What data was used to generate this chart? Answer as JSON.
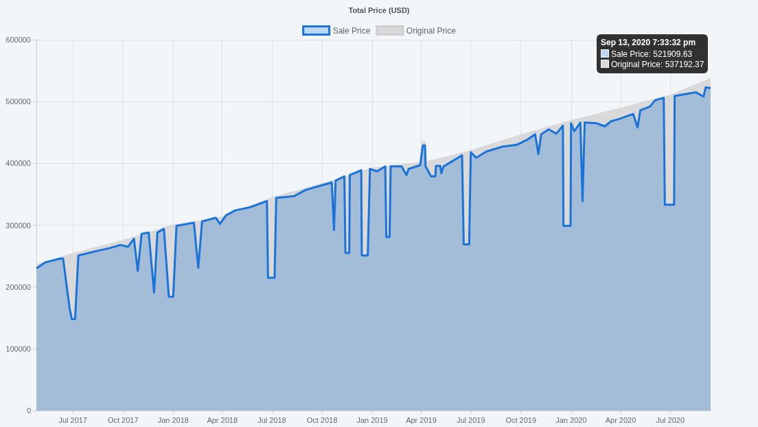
{
  "chart_data": {
    "type": "area",
    "title": "Total Price (USD)",
    "xlim": [
      "2017-04-25",
      "2020-09-13"
    ],
    "xticks": [
      {
        "value": "2017-07-01",
        "label": "Jul 2017"
      },
      {
        "value": "2017-10-01",
        "label": "Oct 2017"
      },
      {
        "value": "2018-01-01",
        "label": "Jan 2018"
      },
      {
        "value": "2018-04-01",
        "label": "Apr 2018"
      },
      {
        "value": "2018-07-01",
        "label": "Jul 2018"
      },
      {
        "value": "2018-10-01",
        "label": "Oct 2018"
      },
      {
        "value": "2019-01-01",
        "label": "Jan 2019"
      },
      {
        "value": "2019-04-01",
        "label": "Apr 2019"
      },
      {
        "value": "2019-07-01",
        "label": "Jul 2019"
      },
      {
        "value": "2019-10-01",
        "label": "Oct 2019"
      },
      {
        "value": "2020-01-01",
        "label": "Jan 2020"
      },
      {
        "value": "2020-04-01",
        "label": "Apr 2020"
      },
      {
        "value": "2020-07-01",
        "label": "Jul 2020"
      }
    ],
    "ylim": [
      0,
      600000
    ],
    "yticks": [
      0,
      100000,
      200000,
      300000,
      400000,
      500000,
      600000
    ],
    "grid": true,
    "legend": "top",
    "marker": "none",
    "series": [
      {
        "name": "Sale Price",
        "color": "#1a73d9",
        "x": [
          "2017-04-25",
          "2017-05-12",
          "2017-06-08",
          "2017-06-13",
          "2017-06-25",
          "2017-06-29",
          "2017-07-05",
          "2017-07-11",
          "2017-08-13",
          "2017-09-07",
          "2017-09-26",
          "2017-10-10",
          "2017-10-21",
          "2017-10-28",
          "2017-11-04",
          "2017-11-17",
          "2017-11-27",
          "2017-12-03",
          "2017-12-15",
          "2017-12-24",
          "2018-01-01",
          "2018-01-07",
          "2018-02-08",
          "2018-02-16",
          "2018-02-23",
          "2018-03-20",
          "2018-03-28",
          "2018-04-08",
          "2018-04-25",
          "2018-05-22",
          "2018-06-22",
          "2018-06-24",
          "2018-07-06",
          "2018-07-09",
          "2018-08-11",
          "2018-09-01",
          "2018-09-29",
          "2018-10-19",
          "2018-10-23",
          "2018-10-26",
          "2018-11-11",
          "2018-11-13",
          "2018-11-20",
          "2018-11-21",
          "2018-12-12",
          "2018-12-13",
          "2018-12-24",
          "2018-12-28",
          "2019-01-10",
          "2019-01-25",
          "2019-01-27",
          "2019-02-02",
          "2019-02-04",
          "2019-02-24",
          "2019-03-05",
          "2019-03-09",
          "2019-03-30",
          "2019-04-04",
          "2019-04-08",
          "2019-04-09",
          "2019-04-19",
          "2019-04-27",
          "2019-04-28",
          "2019-05-06",
          "2019-05-08",
          "2019-05-12",
          "2019-06-15",
          "2019-06-18",
          "2019-06-28",
          "2019-07-01",
          "2019-07-11",
          "2019-07-29",
          "2019-08-28",
          "2019-09-23",
          "2019-10-12",
          "2019-10-27",
          "2019-11-02",
          "2019-11-07",
          "2019-11-21",
          "2019-12-05",
          "2019-12-17",
          "2019-12-18",
          "2019-12-31",
          "2020-01-01",
          "2020-01-07",
          "2020-01-18",
          "2020-01-22",
          "2020-01-26",
          "2020-02-16",
          "2020-03-03",
          "2020-03-14",
          "2020-03-30",
          "2020-04-24",
          "2020-05-02",
          "2020-05-07",
          "2020-05-25",
          "2020-06-03",
          "2020-06-19",
          "2020-06-21",
          "2020-07-08",
          "2020-07-09",
          "2020-07-29",
          "2020-08-17",
          "2020-08-31",
          "2020-09-04",
          "2020-09-13"
        ],
        "values": [
          230000,
          240000,
          246000,
          246000,
          165000,
          148000,
          148000,
          251000,
          258000,
          263000,
          268000,
          265000,
          278000,
          226000,
          286000,
          288000,
          191000,
          288000,
          294000,
          184000,
          184000,
          299000,
          304000,
          231000,
          306000,
          312000,
          302000,
          316000,
          324000,
          329000,
          339000,
          215000,
          215000,
          344000,
          347000,
          357000,
          364000,
          369000,
          292000,
          372000,
          379000,
          255000,
          255000,
          381000,
          389000,
          251000,
          251000,
          391000,
          387000,
          395000,
          281000,
          281000,
          395000,
          395000,
          381000,
          391000,
          397000,
          429000,
          429000,
          395000,
          379000,
          379000,
          396000,
          396000,
          384000,
          395000,
          413000,
          269000,
          269000,
          418000,
          409000,
          419000,
          427000,
          430000,
          438000,
          447000,
          415000,
          447000,
          455000,
          448000,
          461000,
          299000,
          299000,
          465000,
          452000,
          466000,
          339000,
          466000,
          465000,
          460000,
          468000,
          472000,
          480000,
          458000,
          486000,
          492000,
          502000,
          506000,
          333000,
          333000,
          509000,
          512000,
          515000,
          508000,
          523000,
          521909.63
        ]
      },
      {
        "name": "Original Price",
        "color": "#d9d9d9",
        "x": [
          "2017-04-25",
          "2017-07-01",
          "2017-10-01",
          "2018-01-01",
          "2018-04-01",
          "2018-07-01",
          "2018-10-01",
          "2019-01-01",
          "2019-03-30",
          "2019-04-04",
          "2019-04-08",
          "2019-04-10",
          "2019-07-01",
          "2019-10-01",
          "2020-01-01",
          "2020-04-01",
          "2020-07-01",
          "2020-09-13"
        ],
        "values": [
          236000,
          254000,
          275000,
          300000,
          313000,
          344000,
          367000,
          392000,
          401000,
          435000,
          435000,
          402000,
          420000,
          446000,
          469000,
          489000,
          510000,
          537192.37
        ]
      }
    ],
    "annotations": [
      "Sep 13, 2020 7:33:32 pm",
      "Sale Price: 521909.63",
      "Original Price: 537192.37"
    ]
  }
}
